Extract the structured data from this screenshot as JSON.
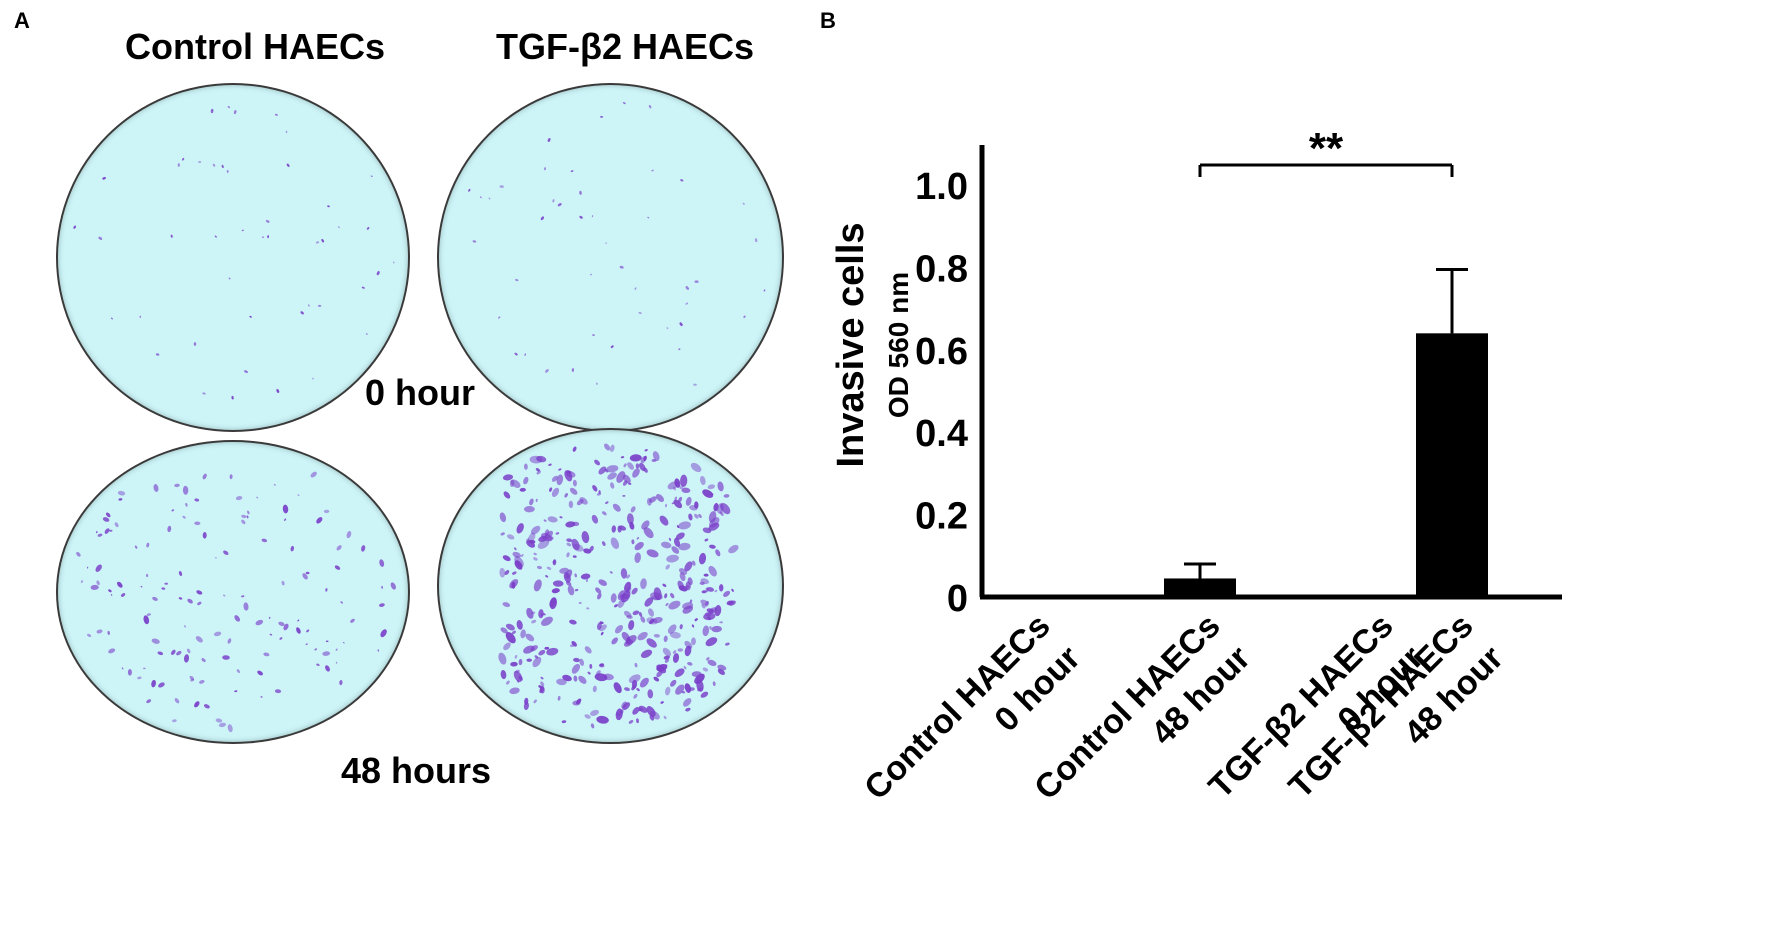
{
  "panel_a": {
    "letter": "A",
    "column_titles": [
      "Control HAECs",
      "TGF-β2 HAECs"
    ],
    "row_labels": [
      "0 hour",
      "48 hours"
    ]
  },
  "panel_b": {
    "letter": "B"
  },
  "colors": {
    "dish_fill": "#cdf5f8",
    "stain": "#7a3fc9",
    "bar": "#000000"
  },
  "chart_data": {
    "type": "bar",
    "ylabel": "Invasive cells",
    "ylabel_secondary": "OD 560 nm",
    "ylim": [
      0,
      1.05
    ],
    "yticks": [
      0,
      0.2,
      0.4,
      0.6,
      0.8,
      1.0
    ],
    "ytick_labels": [
      "0",
      "0.2",
      "0.4",
      "0.6",
      "0.8",
      "1.0"
    ],
    "categories": [
      [
        "Control HAECs",
        "0 hour"
      ],
      [
        "Control HAECs",
        "48 hour"
      ],
      [
        "TGF-β2 HAECs",
        "0 hour"
      ],
      [
        "TGF-β2 HAECs",
        "48 hour"
      ]
    ],
    "values": [
      0.0,
      0.045,
      0.0,
      0.64
    ],
    "errors": [
      0.0,
      0.035,
      0.0,
      0.155
    ],
    "significance": {
      "from": 1,
      "to": 3,
      "label": "**"
    }
  }
}
